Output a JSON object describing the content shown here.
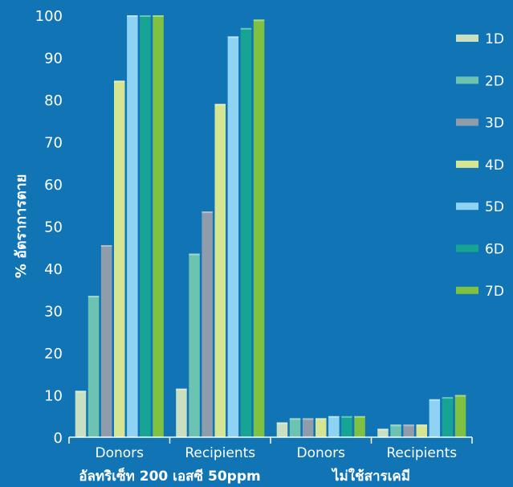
{
  "chart_data": {
    "type": "bar",
    "ylabel": "% อัตราการตาย",
    "ylim": [
      0,
      100
    ],
    "yticks": [
      0,
      10,
      20,
      30,
      40,
      50,
      60,
      70,
      80,
      90,
      100
    ],
    "categories": [
      "Donors",
      "Recipients",
      "Donors",
      "Recipients"
    ],
    "groups": [
      {
        "label": "อัลทริเซ็ท 200 เอสซี 50ppm",
        "categories": [
          0,
          1
        ]
      },
      {
        "label": "ไม่ใช้สารเคมี",
        "categories": [
          2,
          3
        ]
      }
    ],
    "legend_position": "right",
    "series": [
      {
        "name": "1D",
        "color": "#c9dfc1",
        "values": [
          11,
          11.5,
          3.5,
          2
        ]
      },
      {
        "name": "2D",
        "color": "#6cc3b1",
        "values": [
          33.5,
          43.5,
          4.5,
          3
        ]
      },
      {
        "name": "3D",
        "color": "#8f9cac",
        "values": [
          45.5,
          53.5,
          4.5,
          3
        ]
      },
      {
        "name": "4D",
        "color": "#d6e592",
        "values": [
          84.5,
          79,
          4.5,
          3
        ]
      },
      {
        "name": "5D",
        "color": "#8ed3f4",
        "values": [
          100,
          95,
          5,
          9
        ]
      },
      {
        "name": "6D",
        "color": "#16a495",
        "values": [
          100,
          97,
          5,
          9.5
        ]
      },
      {
        "name": "7D",
        "color": "#7fc241",
        "values": [
          100,
          99,
          5,
          10
        ]
      }
    ]
  }
}
